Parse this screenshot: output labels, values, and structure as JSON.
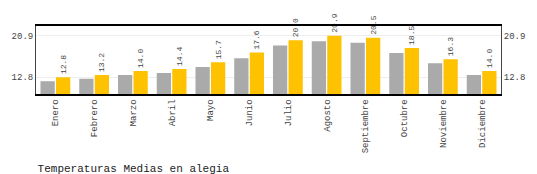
{
  "chart_data": {
    "type": "bar",
    "title": "Temperaturas Medias en alegia",
    "categories": [
      "Enero",
      "Febrero",
      "Marzo",
      "Abril",
      "Mayo",
      "Junio",
      "Julio",
      "Agosto",
      "Septiembre",
      "Octubre",
      "Noviembre",
      "Diciembre"
    ],
    "series": [
      {
        "color": "#AAAAAA",
        "values": [
          12.0,
          12.5,
          13.2,
          13.6,
          14.8,
          16.5,
          19.0,
          19.8,
          19.5,
          17.5,
          15.5,
          13.2
        ]
      },
      {
        "color": "#FFC200",
        "values": [
          12.8,
          13.2,
          14.0,
          14.4,
          15.7,
          17.6,
          20.0,
          20.9,
          20.5,
          18.5,
          16.3,
          14.0
        ],
        "value_labels": [
          "12.8",
          "13.2",
          "14.0",
          "14.4",
          "15.7",
          "17.6",
          "20.0",
          "20.9",
          "20.5",
          "18.5",
          "16.3",
          "14.0"
        ]
      }
    ],
    "ylim": [
      9.5,
      22.8
    ],
    "yticks": [
      12.8,
      20.9
    ],
    "y2lim": [
      9.5,
      22.8
    ],
    "y2ticks": [
      12.8,
      20.9
    ],
    "grid": true,
    "data_labels": true
  }
}
